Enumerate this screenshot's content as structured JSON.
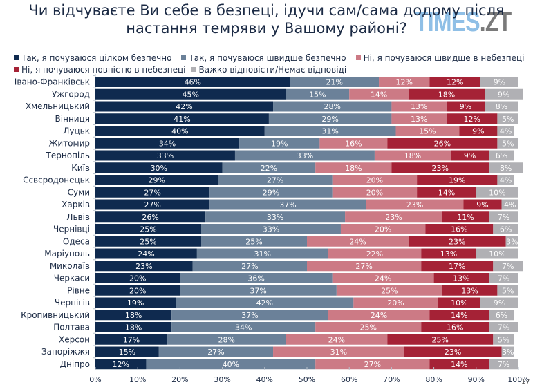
{
  "logo": {
    "part1": "TIMES",
    "part2": ".ZT"
  },
  "page_number": "17",
  "chart_data": {
    "type": "bar",
    "orientation": "horizontal",
    "stacked": true,
    "title": "Чи відчуваєте Ви себе в безпеці, ідучи сам/сама додому після настання темряви у Вашому районі?",
    "title_lines": [
      "Чи відчуваєте Ви себе в безпеці, ідучи сам/сама додому після",
      "настання темряви у Вашому районі?"
    ],
    "xlabel": "",
    "ylabel": "",
    "xlim": [
      0,
      100
    ],
    "x_ticks": [
      "0%",
      "10%",
      "20%",
      "30%",
      "40%",
      "50%",
      "60%",
      "70%",
      "80%",
      "90%",
      "100%"
    ],
    "legend_position": "top",
    "grid": false,
    "categories": [
      "Івано-Франківськ",
      "Ужгород",
      "Хмельницький",
      "Вінниця",
      "Луцьк",
      "Житомир",
      "Тернопіль",
      "Київ",
      "Сєвєродонецьк",
      "Суми",
      "Харків",
      "Львів",
      "Чернівці",
      "Одеса",
      "Маріуполь",
      "Миколаїв",
      "Черкаси",
      "Рівне",
      "Чернігів",
      "Кропивницький",
      "Полтава",
      "Херсон",
      "Запоріжжя",
      "Дніпро"
    ],
    "series": [
      {
        "name": "Так, я почуваюся цілком безпечно",
        "color": "#0f2a4f",
        "values": [
          46,
          45,
          42,
          41,
          40,
          34,
          33,
          30,
          29,
          27,
          27,
          26,
          25,
          25,
          24,
          23,
          20,
          20,
          19,
          18,
          18,
          17,
          15,
          12
        ]
      },
      {
        "name": "Так, я почуваюся швидше безпечно",
        "color": "#6b8199",
        "values": [
          21,
          15,
          28,
          29,
          31,
          19,
          33,
          22,
          27,
          29,
          37,
          33,
          33,
          25,
          31,
          27,
          36,
          37,
          42,
          37,
          34,
          28,
          27,
          40
        ]
      },
      {
        "name": "Ні, я почуваюся швидше в небезпеці",
        "color": "#cc7a85",
        "values": [
          12,
          14,
          13,
          13,
          15,
          16,
          18,
          18,
          20,
          20,
          23,
          23,
          20,
          24,
          22,
          27,
          24,
          25,
          20,
          24,
          25,
          24,
          31,
          27
        ]
      },
      {
        "name": "Ні, я почуваюся повністю в небезпеці",
        "color": "#a52236",
        "values": [
          12,
          18,
          9,
          12,
          9,
          26,
          9,
          23,
          19,
          14,
          9,
          11,
          16,
          23,
          13,
          17,
          13,
          13,
          10,
          14,
          16,
          25,
          23,
          14
        ]
      },
      {
        "name": "Важко відповісти/Немає відповіді",
        "color": "#b0b0b4",
        "values": [
          9,
          9,
          8,
          5,
          4,
          5,
          6,
          8,
          4,
          10,
          4,
          7,
          6,
          3,
          10,
          7,
          7,
          5,
          9,
          6,
          7,
          5,
          3,
          7
        ]
      }
    ],
    "value_suffix": "%"
  }
}
